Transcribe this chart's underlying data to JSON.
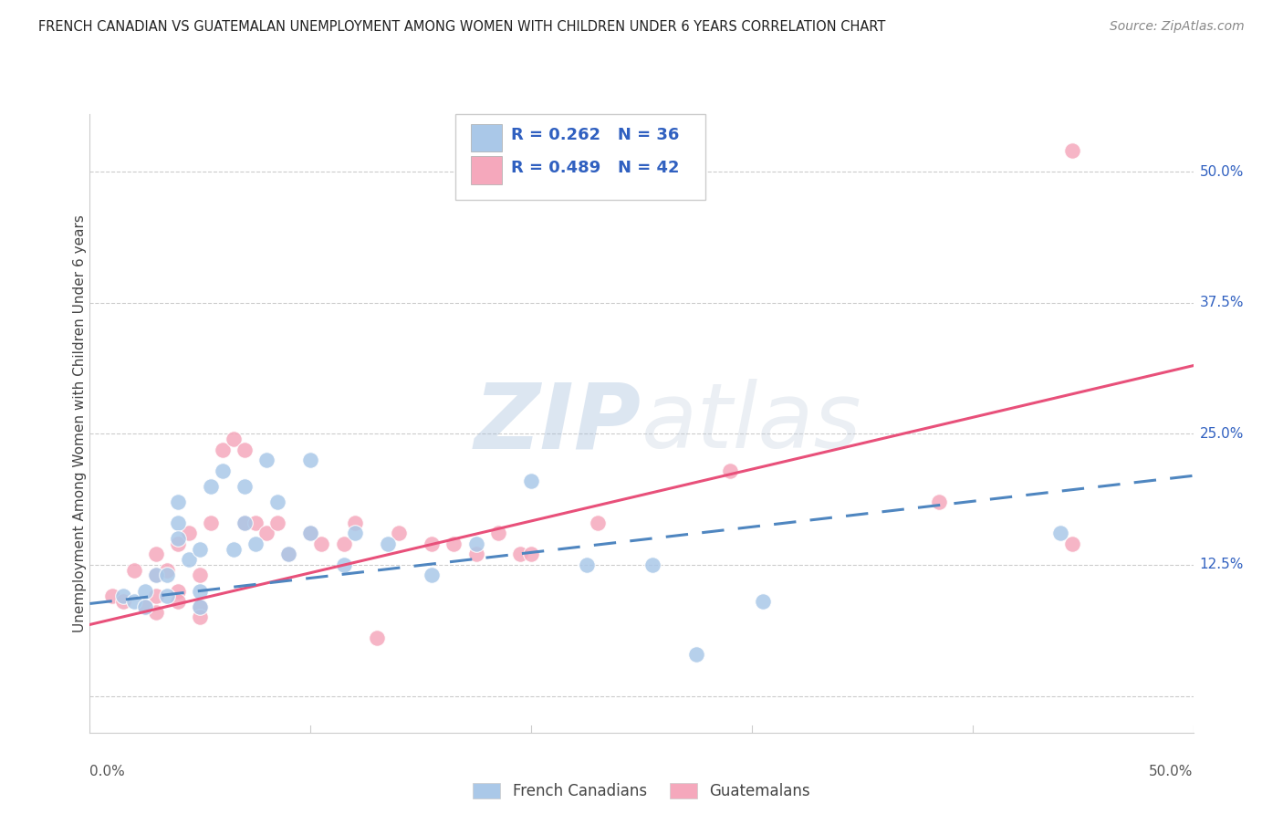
{
  "title": "FRENCH CANADIAN VS GUATEMALAN UNEMPLOYMENT AMONG WOMEN WITH CHILDREN UNDER 6 YEARS CORRELATION CHART",
  "source": "Source: ZipAtlas.com",
  "ylabel": "Unemployment Among Women with Children Under 6 years",
  "xlim": [
    0.0,
    0.5
  ],
  "ylim": [
    -0.035,
    0.555
  ],
  "yticks": [
    0.0,
    0.125,
    0.25,
    0.375,
    0.5
  ],
  "ytick_labels": [
    "",
    "12.5%",
    "25.0%",
    "37.5%",
    "50.0%"
  ],
  "french_canadian_color": "#aac8e8",
  "guatemalan_color": "#f5a8bc",
  "french_canadian_line_color": "#4f86c0",
  "guatemalan_line_color": "#e8507a",
  "legend_text_color": "#3060c0",
  "background_color": "#ffffff",
  "watermark_zip": "ZIP",
  "watermark_atlas": "atlas",
  "R_french": 0.262,
  "N_french": 36,
  "R_guatemalan": 0.489,
  "N_guatemalan": 42,
  "french_canadian_points": [
    [
      0.015,
      0.095
    ],
    [
      0.02,
      0.09
    ],
    [
      0.025,
      0.1
    ],
    [
      0.025,
      0.085
    ],
    [
      0.03,
      0.115
    ],
    [
      0.035,
      0.115
    ],
    [
      0.035,
      0.095
    ],
    [
      0.04,
      0.165
    ],
    [
      0.04,
      0.15
    ],
    [
      0.04,
      0.185
    ],
    [
      0.045,
      0.13
    ],
    [
      0.05,
      0.1
    ],
    [
      0.05,
      0.14
    ],
    [
      0.05,
      0.085
    ],
    [
      0.055,
      0.2
    ],
    [
      0.06,
      0.215
    ],
    [
      0.065,
      0.14
    ],
    [
      0.07,
      0.2
    ],
    [
      0.07,
      0.165
    ],
    [
      0.075,
      0.145
    ],
    [
      0.08,
      0.225
    ],
    [
      0.085,
      0.185
    ],
    [
      0.09,
      0.135
    ],
    [
      0.1,
      0.225
    ],
    [
      0.1,
      0.155
    ],
    [
      0.115,
      0.125
    ],
    [
      0.12,
      0.155
    ],
    [
      0.135,
      0.145
    ],
    [
      0.155,
      0.115
    ],
    [
      0.175,
      0.145
    ],
    [
      0.2,
      0.205
    ],
    [
      0.225,
      0.125
    ],
    [
      0.255,
      0.125
    ],
    [
      0.275,
      0.04
    ],
    [
      0.305,
      0.09
    ],
    [
      0.44,
      0.155
    ]
  ],
  "guatemalan_points": [
    [
      0.01,
      0.095
    ],
    [
      0.015,
      0.09
    ],
    [
      0.02,
      0.12
    ],
    [
      0.025,
      0.085
    ],
    [
      0.03,
      0.115
    ],
    [
      0.03,
      0.095
    ],
    [
      0.03,
      0.08
    ],
    [
      0.03,
      0.135
    ],
    [
      0.035,
      0.12
    ],
    [
      0.04,
      0.145
    ],
    [
      0.04,
      0.1
    ],
    [
      0.04,
      0.09
    ],
    [
      0.045,
      0.155
    ],
    [
      0.05,
      0.115
    ],
    [
      0.05,
      0.085
    ],
    [
      0.05,
      0.075
    ],
    [
      0.055,
      0.165
    ],
    [
      0.06,
      0.235
    ],
    [
      0.065,
      0.245
    ],
    [
      0.07,
      0.165
    ],
    [
      0.07,
      0.235
    ],
    [
      0.075,
      0.165
    ],
    [
      0.08,
      0.155
    ],
    [
      0.085,
      0.165
    ],
    [
      0.09,
      0.135
    ],
    [
      0.1,
      0.155
    ],
    [
      0.105,
      0.145
    ],
    [
      0.115,
      0.145
    ],
    [
      0.12,
      0.165
    ],
    [
      0.13,
      0.055
    ],
    [
      0.14,
      0.155
    ],
    [
      0.155,
      0.145
    ],
    [
      0.165,
      0.145
    ],
    [
      0.175,
      0.135
    ],
    [
      0.185,
      0.155
    ],
    [
      0.195,
      0.135
    ],
    [
      0.2,
      0.135
    ],
    [
      0.23,
      0.165
    ],
    [
      0.29,
      0.215
    ],
    [
      0.385,
      0.185
    ],
    [
      0.445,
      0.52
    ],
    [
      0.445,
      0.145
    ]
  ],
  "french_line_x": [
    0.0,
    0.5
  ],
  "french_line_y": [
    0.088,
    0.21
  ],
  "guatemalan_line_x": [
    0.0,
    0.5
  ],
  "guatemalan_line_y": [
    0.068,
    0.315
  ],
  "grid_color": "#cccccc",
  "grid_linestyle": "--",
  "spine_color": "#cccccc"
}
